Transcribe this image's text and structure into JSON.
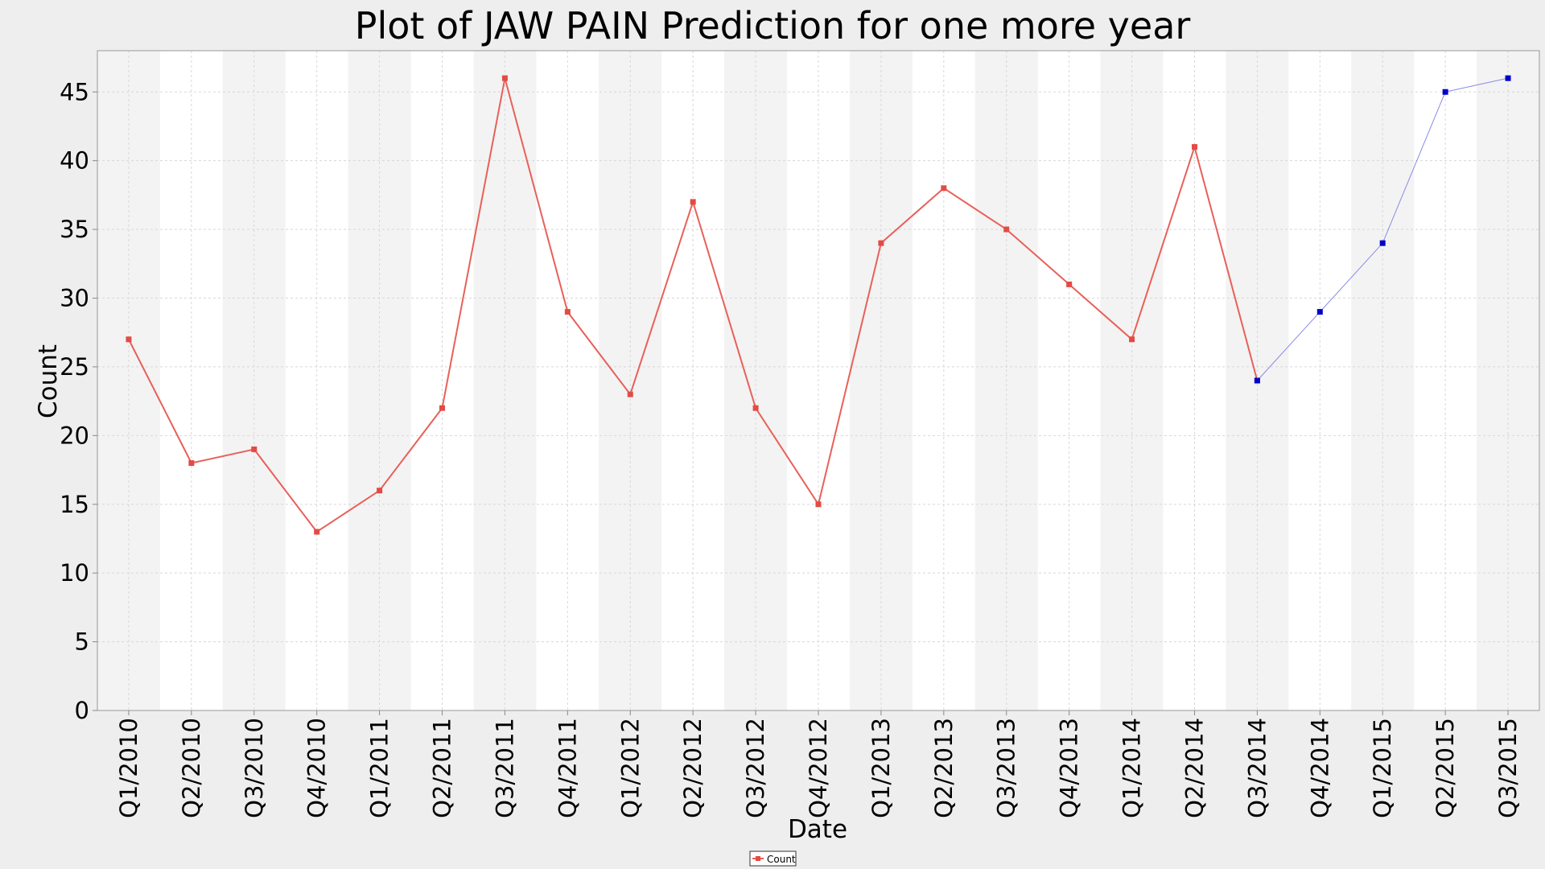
{
  "chart_data": {
    "type": "line",
    "title": "Plot of JAW PAIN Prediction for one more year",
    "xlabel": "Date",
    "ylabel": "Count",
    "ylim": [
      0,
      48
    ],
    "yticks": [
      0,
      5,
      10,
      15,
      20,
      25,
      30,
      35,
      40,
      45
    ],
    "grid": true,
    "legend_position": "bottom-center",
    "categories": [
      "Q1/2010",
      "Q2/2010",
      "Q3/2010",
      "Q4/2010",
      "Q1/2011",
      "Q2/2011",
      "Q3/2011",
      "Q4/2011",
      "Q1/2012",
      "Q2/2012",
      "Q3/2012",
      "Q4/2012",
      "Q1/2013",
      "Q2/2013",
      "Q3/2013",
      "Q4/2013",
      "Q1/2014",
      "Q2/2014",
      "Q3/2014",
      "Q4/2014",
      "Q1/2015",
      "Q2/2015",
      "Q3/2015"
    ],
    "series": [
      {
        "name": "Count",
        "color": "#e8605a",
        "marker_color": "#e34b45",
        "values": [
          27,
          18,
          19,
          13,
          16,
          22,
          46,
          29,
          23,
          37,
          22,
          15,
          34,
          38,
          35,
          31,
          27,
          41,
          24,
          null,
          null,
          null,
          null
        ]
      },
      {
        "color": "#8a8ae6",
        "marker_color": "#0000cc",
        "values": [
          null,
          null,
          null,
          null,
          null,
          null,
          null,
          null,
          null,
          null,
          null,
          null,
          null,
          null,
          null,
          null,
          null,
          null,
          24,
          29,
          34,
          45,
          46
        ]
      }
    ],
    "band_colors": [
      "#f3f3f3",
      "#ffffff"
    ]
  }
}
